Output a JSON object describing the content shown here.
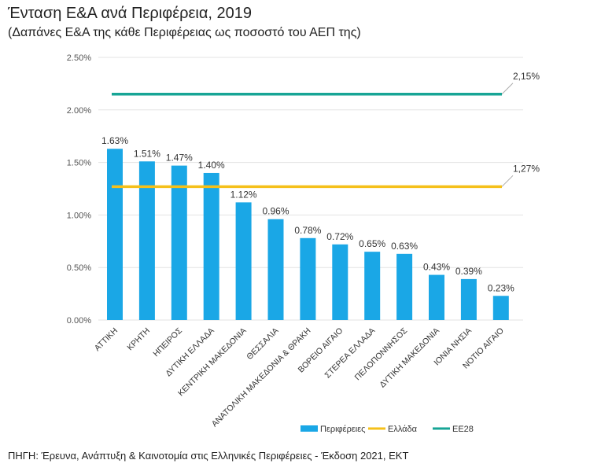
{
  "chart_data": {
    "type": "bar",
    "title": "Ένταση Ε&Α ανά Περιφέρεια, 2019",
    "subtitle": "(Δαπάνες Ε&Α της κάθε Περιφέρειας ως ποσοστό του ΑΕΠ της)",
    "categories": [
      "ΑΤΤΙΚΗ",
      "ΚΡΗΤΗ",
      "ΗΠΕΙΡΟΣ",
      "ΔΥΤΙΚΗ ΕΛΛΑΔΑ",
      "ΚΕΝΤΡΙΚΗ ΜΑΚΕΔΟΝΙΑ",
      "ΘΕΣΣΑΛΙΑ",
      "ΑΝΑΤΟΛΙΚΗ ΜΑΚΕΔΟΝΙΑ & ΘΡΑΚΗ",
      "ΒΟΡΕΙΟ ΑΙΓΑΙΟ",
      "ΣΤΕΡΕΑ ΕΛΛΑΔΑ",
      "ΠΕΛΟΠΟΝΝΗΣΟΣ",
      "ΔΥΤΙΚΗ ΜΑΚΕΔΟΝΙΑ",
      "ΙΟΝΙΑ ΝΗΣΙΑ",
      "ΝΟΤΙΟ ΑΙΓΑΙΟ"
    ],
    "series": [
      {
        "name": "Περιφέρειες",
        "kind": "bar",
        "color": "#1aa7e6",
        "values": [
          1.63,
          1.51,
          1.47,
          1.4,
          1.12,
          0.96,
          0.78,
          0.72,
          0.65,
          0.63,
          0.43,
          0.39,
          0.23
        ],
        "labels": [
          "1.63%",
          "1.51%",
          "1.47%",
          "1.40%",
          "1.12%",
          "0.96%",
          "0.78%",
          "0.72%",
          "0.65%",
          "0.63%",
          "0.43%",
          "0.39%",
          "0.23%"
        ]
      },
      {
        "name": "Ελλάδα",
        "kind": "line",
        "color": "#f5c01a",
        "value": 1.27,
        "label": "1,27%"
      },
      {
        "name": "ΕΕ28",
        "kind": "line",
        "color": "#17a596",
        "value": 2.15,
        "label": "2,15%"
      }
    ],
    "ylim": [
      0,
      2.5
    ],
    "yticks": [
      "0.00%",
      "0.50%",
      "1.00%",
      "1.50%",
      "2.00%",
      "2.50%"
    ],
    "grid": true,
    "legend": "bottom-right",
    "source": "ΠΗΓΗ: Έρευνα, Ανάπτυξη & Καινοτομία στις Ελληνικές Περιφέρειες - Έκδοση 2021, ΕΚΤ"
  }
}
